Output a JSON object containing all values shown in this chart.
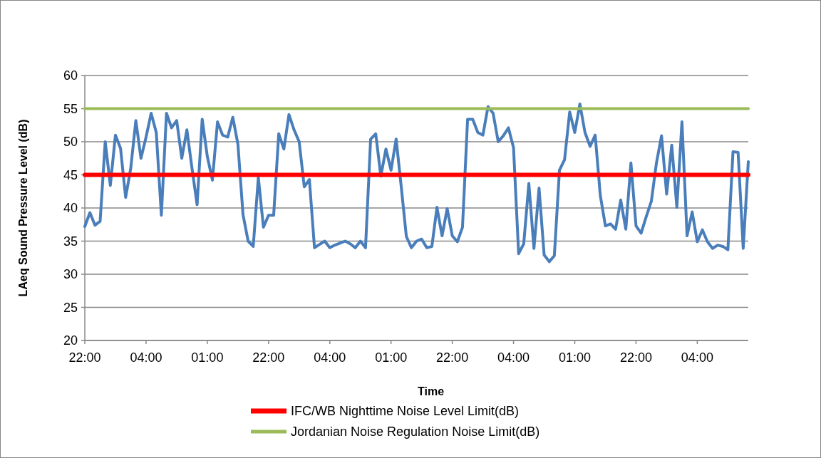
{
  "chart_data": {
    "type": "line",
    "xlabel": "Time",
    "ylabel": "LAeq Sound Pressure Level (dB)",
    "categories": [
      "22:00",
      null,
      null,
      null,
      null,
      null,
      null,
      null,
      null,
      null,
      null,
      null,
      "04:00",
      null,
      null,
      null,
      null,
      null,
      null,
      null,
      null,
      null,
      null,
      null,
      "01:00",
      null,
      null,
      null,
      null,
      null,
      null,
      null,
      null,
      null,
      null,
      null,
      "22:00",
      null,
      null,
      null,
      null,
      null,
      null,
      null,
      null,
      null,
      null,
      null,
      "04:00",
      null,
      null,
      null,
      null,
      null,
      null,
      null,
      null,
      null,
      null,
      null,
      "01:00",
      null,
      null,
      null,
      null,
      null,
      null,
      null,
      null,
      null,
      null,
      null,
      "22:00",
      null,
      null,
      null,
      null,
      null,
      null,
      null,
      null,
      null,
      null,
      null,
      "04:00",
      null,
      null,
      null,
      null,
      null,
      null,
      null,
      null,
      null,
      null,
      null,
      "01:00",
      null,
      null,
      null,
      null,
      null,
      null,
      null,
      null,
      null,
      null,
      null,
      "22:00",
      null,
      null,
      null,
      null,
      null,
      null,
      null,
      null,
      null,
      null,
      null,
      "04:00",
      null,
      null,
      null,
      null,
      null,
      null,
      null,
      null,
      null,
      null
    ],
    "ylim": [
      20,
      60
    ],
    "yticks": [
      20,
      25,
      30,
      35,
      40,
      45,
      50,
      55,
      60
    ],
    "grid": "y",
    "legend": "bottom",
    "line_style": "solid",
    "marker": "none",
    "series": [
      {
        "color": "#4a7ebb",
        "values": [
          37.2,
          39.3,
          37.4,
          38,
          50,
          43.4,
          51,
          49,
          41.6,
          46,
          53.2,
          47.5,
          50.7,
          54.3,
          51.4,
          38.9,
          54.3,
          52.1,
          53.2,
          47.5,
          51.8,
          46,
          40.5,
          53.4,
          47.8,
          44.2,
          53,
          51,
          50.7,
          53.7,
          49.6,
          39,
          35,
          34.2,
          44.6,
          37.1,
          38.9,
          38.9,
          51.2,
          48.9,
          54.1,
          51.8,
          50,
          43.2,
          44.3,
          34,
          34.5,
          35,
          34,
          34.4,
          34.7,
          35,
          34.6,
          34,
          35,
          34,
          50.4,
          51.2,
          44.8,
          48.9,
          45.7,
          50.4,
          43.2,
          35.7,
          34,
          35,
          35.3,
          34,
          34.2,
          40.1,
          35.8,
          39.9,
          35.8,
          34.9,
          37.1,
          53.4,
          53.4,
          51.4,
          51,
          55.3,
          54.3,
          50,
          50.9,
          52.1,
          49.1,
          33.1,
          34.6,
          43.7,
          33.9,
          43,
          32.9,
          31.9,
          32.8,
          45.7,
          47.3,
          54.5,
          51.4,
          55.7,
          51.4,
          49.3,
          51,
          41.9,
          37.3,
          37.6,
          36.8,
          41.2,
          36.8,
          46.8,
          37.3,
          36.2,
          38.7,
          41,
          46.8,
          50.9,
          42.1,
          49.5,
          40.1,
          53,
          35.8,
          39.4,
          34.9,
          36.7,
          34.9,
          33.9,
          34.4,
          34.2,
          33.7,
          48.5,
          48.4,
          33.9,
          47
        ]
      },
      {
        "name": "IFC/WB Nighttime Noise Level Limit(dB)",
        "color": "#ff0000",
        "values": [
          45,
          45,
          45,
          45,
          45,
          45,
          45,
          45,
          45,
          45,
          45,
          45,
          45,
          45,
          45,
          45,
          45,
          45,
          45,
          45,
          45,
          45,
          45,
          45,
          45,
          45,
          45,
          45,
          45,
          45,
          45,
          45,
          45,
          45,
          45,
          45,
          45,
          45,
          45,
          45,
          45,
          45,
          45,
          45,
          45,
          45,
          45,
          45,
          45,
          45,
          45,
          45,
          45,
          45,
          45,
          45,
          45,
          45,
          45,
          45,
          45,
          45,
          45,
          45,
          45,
          45,
          45,
          45,
          45,
          45,
          45,
          45,
          45,
          45,
          45,
          45,
          45,
          45,
          45,
          45,
          45,
          45,
          45,
          45,
          45,
          45,
          45,
          45,
          45,
          45,
          45,
          45,
          45,
          45,
          45,
          45,
          45,
          45,
          45,
          45,
          45,
          45,
          45,
          45,
          45,
          45,
          45,
          45,
          45,
          45,
          45,
          45,
          45,
          45,
          45,
          45,
          45,
          45,
          45,
          45,
          45,
          45,
          45,
          45,
          45,
          45,
          45,
          45,
          45,
          45,
          45
        ]
      },
      {
        "name": "Jordanian Noise Regulation Noise Limit(dB)",
        "color": "#9bbb59",
        "values": [
          55,
          55,
          55,
          55,
          55,
          55,
          55,
          55,
          55,
          55,
          55,
          55,
          55,
          55,
          55,
          55,
          55,
          55,
          55,
          55,
          55,
          55,
          55,
          55,
          55,
          55,
          55,
          55,
          55,
          55,
          55,
          55,
          55,
          55,
          55,
          55,
          55,
          55,
          55,
          55,
          55,
          55,
          55,
          55,
          55,
          55,
          55,
          55,
          55,
          55,
          55,
          55,
          55,
          55,
          55,
          55,
          55,
          55,
          55,
          55,
          55,
          55,
          55,
          55,
          55,
          55,
          55,
          55,
          55,
          55,
          55,
          55,
          55,
          55,
          55,
          55,
          55,
          55,
          55,
          55,
          55,
          55,
          55,
          55,
          55,
          55,
          55,
          55,
          55,
          55,
          55,
          55,
          55,
          55,
          55,
          55,
          55,
          55,
          55,
          55,
          55,
          55,
          55,
          55,
          55,
          55,
          55,
          55,
          55,
          55,
          55,
          55,
          55,
          55,
          55,
          55,
          55,
          55,
          55,
          55,
          55,
          55,
          55,
          55,
          55,
          55,
          55,
          55,
          55,
          55,
          55
        ]
      }
    ]
  }
}
